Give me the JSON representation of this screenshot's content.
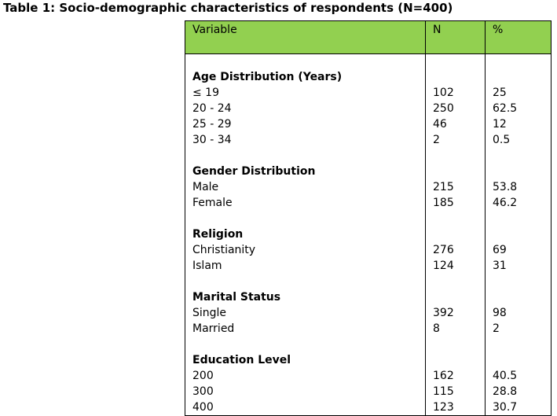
{
  "caption": "Table 1: Socio-demographic characteristics of respondents (N=400)",
  "headers": {
    "variable": "Variable",
    "n": "N",
    "percent": "%"
  },
  "groups": [
    {
      "title": "Age Distribution (Years)",
      "rows": [
        {
          "label": "≤ 19",
          "n": "102",
          "pct": "25"
        },
        {
          "label": "20 - 24",
          "n": "250",
          "pct": "62.5"
        },
        {
          "label": "25 - 29",
          "n": "46",
          "pct": "12"
        },
        {
          "label": "30 - 34",
          "n": "2",
          "pct": "0.5"
        }
      ]
    },
    {
      "title": "Gender Distribution",
      "rows": [
        {
          "label": "Male",
          "n": "215",
          "pct": "53.8"
        },
        {
          "label": "Female",
          "n": "185",
          "pct": "46.2"
        }
      ]
    },
    {
      "title": "Religion",
      "rows": [
        {
          "label": "Christianity",
          "n": "276",
          "pct": "69"
        },
        {
          "label": "Islam",
          "n": "124",
          "pct": "31"
        }
      ]
    },
    {
      "title": "Marital Status",
      "rows": [
        {
          "label": "Single",
          "n": "392",
          "pct": "98"
        },
        {
          "label": "Married",
          "n": "8",
          "pct": "2"
        }
      ]
    },
    {
      "title": "Education Level",
      "rows": [
        {
          "label": "200",
          "n": "162",
          "pct": "40.5"
        },
        {
          "label": "300",
          "n": "115",
          "pct": "28.8"
        },
        {
          "label": "400",
          "n": "123",
          "pct": "30.7"
        }
      ]
    }
  ],
  "colors": {
    "header_bg": "#92d050",
    "border": "#000000"
  }
}
